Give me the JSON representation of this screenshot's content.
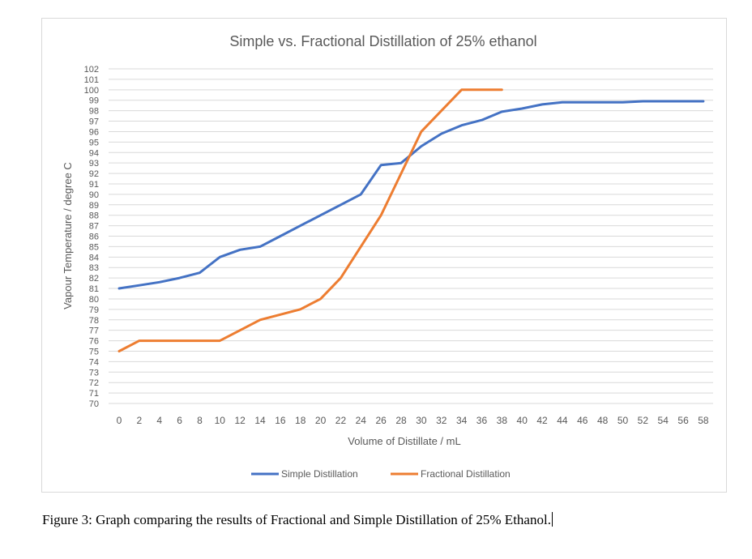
{
  "chart_data": {
    "type": "line",
    "title": "Simple vs. Fractional Distillation of 25% ethanol",
    "xlabel": "Volume of Distillate / mL",
    "ylabel": "Vapour Temperature / degree C",
    "categories": [
      0,
      2,
      4,
      6,
      8,
      10,
      12,
      14,
      16,
      18,
      20,
      22,
      24,
      26,
      28,
      30,
      32,
      34,
      36,
      38,
      40,
      42,
      44,
      46,
      48,
      50,
      52,
      54,
      56,
      58
    ],
    "ylim": [
      70,
      102
    ],
    "ytick_step": 1,
    "grid": true,
    "legend": "bottom",
    "series": [
      {
        "name": "Simple Distillation",
        "color": "#4472C4",
        "x": [
          0,
          2,
          4,
          6,
          8,
          10,
          12,
          14,
          16,
          18,
          20,
          22,
          24,
          26,
          28,
          30,
          32,
          34,
          36,
          38,
          40,
          42,
          44,
          46,
          48,
          50,
          52,
          54,
          56,
          58
        ],
        "values": [
          81,
          81.3,
          81.6,
          82,
          82.5,
          84,
          84.7,
          85,
          86,
          87,
          88,
          89,
          90,
          92.8,
          93,
          94.6,
          95.8,
          96.6,
          97.1,
          97.9,
          98.2,
          98.6,
          98.8,
          98.8,
          98.8,
          98.8,
          98.9,
          98.9,
          98.9,
          98.9
        ]
      },
      {
        "name": "Fractional Distillation",
        "color": "#ED7D31",
        "x": [
          0,
          2,
          4,
          6,
          8,
          10,
          12,
          14,
          16,
          18,
          20,
          22,
          24,
          26,
          28,
          30,
          32,
          34,
          36,
          38
        ],
        "values": [
          75,
          76,
          76,
          76,
          76,
          76,
          77,
          78,
          78.5,
          79,
          80,
          82,
          85,
          88,
          92,
          96,
          98,
          100,
          100,
          100
        ]
      }
    ]
  },
  "caption": "Figure 3: Graph comparing the results of Fractional and Simple Distillation of 25% Ethanol."
}
